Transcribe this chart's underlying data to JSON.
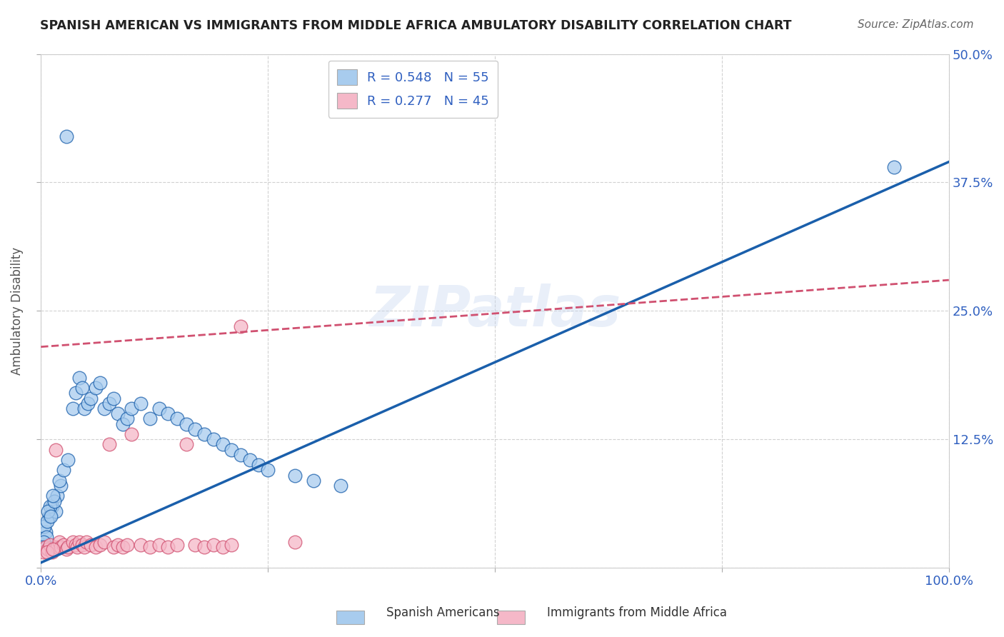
{
  "title": "SPANISH AMERICAN VS IMMIGRANTS FROM MIDDLE AFRICA AMBULATORY DISABILITY CORRELATION CHART",
  "source": "Source: ZipAtlas.com",
  "ylabel": "Ambulatory Disability",
  "xlim": [
    0,
    1.0
  ],
  "ylim": [
    0,
    0.5
  ],
  "ytick_labels_right": [
    "",
    "12.5%",
    "25.0%",
    "37.5%",
    "50.0%"
  ],
  "ytick_vals": [
    0.0,
    0.125,
    0.25,
    0.375,
    0.5
  ],
  "R_blue": 0.548,
  "N_blue": 55,
  "R_pink": 0.277,
  "N_pink": 45,
  "blue_color": "#A8CCEE",
  "pink_color": "#F5B8C8",
  "blue_line_color": "#1A5FAB",
  "pink_line_color": "#D05070",
  "legend_blue_label": "Spanish Americans",
  "legend_pink_label": "Immigrants from Middle Africa",
  "watermark": "ZIPatlas",
  "background_color": "#FFFFFF",
  "grid_color": "#CCCCCC",
  "title_color": "#222222",
  "axis_label_color": "#3060C0",
  "blue_scatter_x": [
    0.028,
    0.005,
    0.009,
    0.004,
    0.012,
    0.007,
    0.016,
    0.006,
    0.003,
    0.002,
    0.018,
    0.022,
    0.01,
    0.008,
    0.015,
    0.011,
    0.013,
    0.02,
    0.025,
    0.03,
    0.035,
    0.038,
    0.042,
    0.045,
    0.048,
    0.052,
    0.055,
    0.06,
    0.065,
    0.07,
    0.075,
    0.08,
    0.085,
    0.09,
    0.095,
    0.1,
    0.11,
    0.12,
    0.13,
    0.14,
    0.15,
    0.16,
    0.17,
    0.18,
    0.19,
    0.2,
    0.21,
    0.22,
    0.23,
    0.24,
    0.25,
    0.28,
    0.3,
    0.33,
    0.94
  ],
  "blue_scatter_y": [
    0.42,
    0.035,
    0.05,
    0.04,
    0.06,
    0.045,
    0.055,
    0.03,
    0.025,
    0.02,
    0.07,
    0.08,
    0.06,
    0.055,
    0.065,
    0.05,
    0.07,
    0.085,
    0.095,
    0.105,
    0.155,
    0.17,
    0.185,
    0.175,
    0.155,
    0.16,
    0.165,
    0.175,
    0.18,
    0.155,
    0.16,
    0.165,
    0.15,
    0.14,
    0.145,
    0.155,
    0.16,
    0.145,
    0.155,
    0.15,
    0.145,
    0.14,
    0.135,
    0.13,
    0.125,
    0.12,
    0.115,
    0.11,
    0.105,
    0.1,
    0.095,
    0.09,
    0.085,
    0.08,
    0.39
  ],
  "pink_scatter_x": [
    0.003,
    0.005,
    0.008,
    0.01,
    0.012,
    0.015,
    0.018,
    0.02,
    0.022,
    0.025,
    0.028,
    0.03,
    0.035,
    0.038,
    0.04,
    0.042,
    0.045,
    0.048,
    0.05,
    0.055,
    0.06,
    0.065,
    0.07,
    0.075,
    0.08,
    0.085,
    0.09,
    0.095,
    0.1,
    0.11,
    0.12,
    0.13,
    0.14,
    0.15,
    0.16,
    0.17,
    0.18,
    0.19,
    0.2,
    0.21,
    0.22,
    0.28,
    0.007,
    0.013,
    0.016
  ],
  "pink_scatter_y": [
    0.015,
    0.02,
    0.018,
    0.022,
    0.015,
    0.018,
    0.02,
    0.025,
    0.02,
    0.022,
    0.018,
    0.02,
    0.025,
    0.022,
    0.02,
    0.025,
    0.022,
    0.02,
    0.025,
    0.022,
    0.02,
    0.022,
    0.025,
    0.12,
    0.02,
    0.022,
    0.02,
    0.022,
    0.13,
    0.022,
    0.02,
    0.022,
    0.02,
    0.022,
    0.12,
    0.022,
    0.02,
    0.022,
    0.02,
    0.022,
    0.235,
    0.025,
    0.015,
    0.018,
    0.115
  ],
  "blue_line_x0": 0.0,
  "blue_line_y0": 0.005,
  "blue_line_x1": 1.0,
  "blue_line_y1": 0.395,
  "pink_line_x0": 0.0,
  "pink_line_y0": 0.215,
  "pink_line_x1": 1.0,
  "pink_line_y1": 0.28
}
